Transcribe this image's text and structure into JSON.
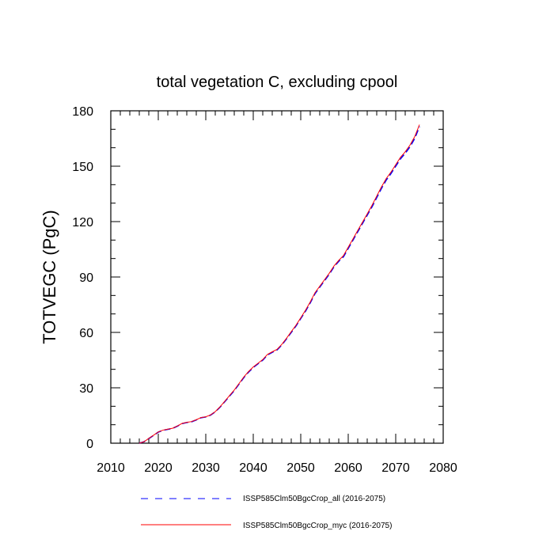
{
  "chart_data": {
    "type": "line",
    "title": "total vegetation C, excluding cpool",
    "xlabel": "",
    "ylabel": "TOTVEGC  (PgC)",
    "xlim": [
      2010,
      2080
    ],
    "ylim": [
      0,
      180
    ],
    "xticks": [
      2010,
      2020,
      2030,
      2040,
      2050,
      2060,
      2070,
      2080
    ],
    "yticks": [
      0,
      30,
      60,
      90,
      120,
      150,
      180
    ],
    "xtick_labels": [
      "2010",
      "2020",
      "2030",
      "2040",
      "2050",
      "2060",
      "2070",
      "2080"
    ],
    "ytick_labels": [
      "0",
      "30",
      "60",
      "90",
      "120",
      "150",
      "180"
    ],
    "x": [
      2016,
      2017,
      2018,
      2019,
      2020,
      2021,
      2022,
      2023,
      2024,
      2025,
      2026,
      2027,
      2028,
      2029,
      2030,
      2031,
      2032,
      2033,
      2034,
      2035,
      2036,
      2037,
      2038,
      2039,
      2040,
      2041,
      2042,
      2043,
      2044,
      2045,
      2046,
      2047,
      2048,
      2049,
      2050,
      2051,
      2052,
      2053,
      2054,
      2055,
      2056,
      2057,
      2058,
      2059,
      2060,
      2061,
      2062,
      2063,
      2064,
      2065,
      2066,
      2067,
      2068,
      2069,
      2070,
      2071,
      2072,
      2073,
      2074,
      2075
    ],
    "series": [
      {
        "name": "ISSP585Clm50BgcCrop_all (2016-2075)",
        "color": "#0000ff",
        "dash": "dashed",
        "values": [
          0,
          0.8,
          2.5,
          4.2,
          6.0,
          7.0,
          7.5,
          8.0,
          9.2,
          10.6,
          11.2,
          11.6,
          12.6,
          13.8,
          14.2,
          15.2,
          17.0,
          19.5,
          22.5,
          25.5,
          28.5,
          32.0,
          35.5,
          38.5,
          41.0,
          43.0,
          45.0,
          47.8,
          49.2,
          50.5,
          53.2,
          56.5,
          60.0,
          63.5,
          67.5,
          71.5,
          76.0,
          81.0,
          84.5,
          88.0,
          91.5,
          95.5,
          98.5,
          101.0,
          105.5,
          110.0,
          114.5,
          119.0,
          123.5,
          128.0,
          133.0,
          138.0,
          142.5,
          146.0,
          150.0,
          154.0,
          157.0,
          160.5,
          165.0,
          171.5
        ]
      },
      {
        "name": "ISSP585Clm50BgcCrop_myc (2016-2075)",
        "color": "#ff0000",
        "dash": "solid",
        "values": [
          0,
          0.8,
          2.6,
          4.3,
          6.1,
          7.1,
          7.6,
          8.1,
          9.3,
          10.7,
          11.3,
          11.7,
          12.7,
          13.9,
          14.3,
          15.3,
          17.1,
          19.7,
          22.7,
          25.8,
          28.8,
          32.3,
          35.8,
          38.8,
          41.3,
          43.3,
          45.3,
          48.1,
          49.5,
          50.8,
          53.5,
          56.8,
          60.4,
          63.9,
          67.9,
          72.0,
          76.5,
          81.5,
          85.0,
          88.5,
          92.0,
          96.0,
          99.0,
          101.6,
          106.1,
          110.6,
          115.2,
          119.7,
          124.2,
          128.8,
          133.8,
          138.8,
          143.3,
          146.8,
          150.8,
          154.8,
          157.8,
          161.4,
          166.0,
          172.5
        ]
      }
    ],
    "legend_placement": "bottom",
    "grid": false
  }
}
